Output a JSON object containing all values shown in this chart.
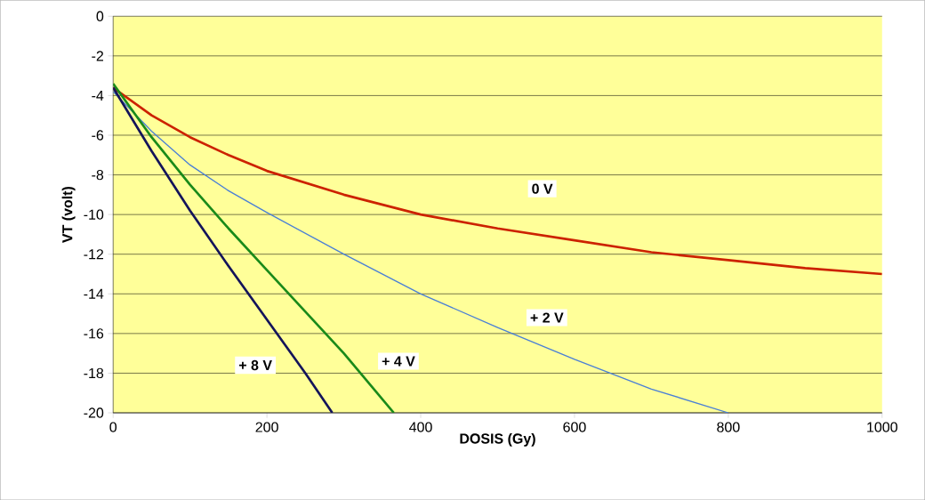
{
  "chart_data": {
    "type": "line",
    "xlabel": "DOSIS (Gy)",
    "ylabel": "VT (volt)",
    "xlim": [
      0,
      1000
    ],
    "ylim": [
      -20,
      0
    ],
    "xticks": [
      0,
      200,
      400,
      600,
      800,
      1000
    ],
    "yticks": [
      0,
      -2,
      -4,
      -6,
      -8,
      -10,
      -12,
      -14,
      -16,
      -18,
      -20
    ],
    "grid": "y",
    "marker": "none",
    "line_style": "solid",
    "series": [
      {
        "name": "0 V",
        "color": "#cc2200",
        "x": [
          0,
          50,
          100,
          150,
          200,
          300,
          400,
          500,
          600,
          700,
          800,
          900,
          1000
        ],
        "values": [
          -3.6,
          -5.0,
          -6.1,
          -7.0,
          -7.8,
          -9.0,
          -10.0,
          -10.7,
          -11.3,
          -11.9,
          -12.3,
          -12.7,
          -13.0
        ]
      },
      {
        "name": "+ 2 V",
        "color": "#4a7fd6",
        "x": [
          0,
          50,
          100,
          150,
          200,
          300,
          400,
          500,
          600,
          700,
          800
        ],
        "values": [
          -3.8,
          -5.8,
          -7.5,
          -8.8,
          -9.9,
          -12.0,
          -14.0,
          -15.7,
          -17.3,
          -18.8,
          -20.0
        ]
      },
      {
        "name": "+ 4 V",
        "color": "#1a8a1a",
        "x": [
          0,
          50,
          100,
          150,
          200,
          250,
          300,
          365
        ],
        "values": [
          -3.4,
          -6.1,
          -8.5,
          -10.7,
          -12.8,
          -14.9,
          -17.0,
          -20.0
        ]
      },
      {
        "name": "+ 8 V",
        "color": "#14145a",
        "x": [
          0,
          50,
          100,
          150,
          200,
          250,
          285
        ],
        "values": [
          -3.6,
          -6.8,
          -9.8,
          -12.6,
          -15.3,
          -18.0,
          -20.0
        ]
      }
    ]
  }
}
